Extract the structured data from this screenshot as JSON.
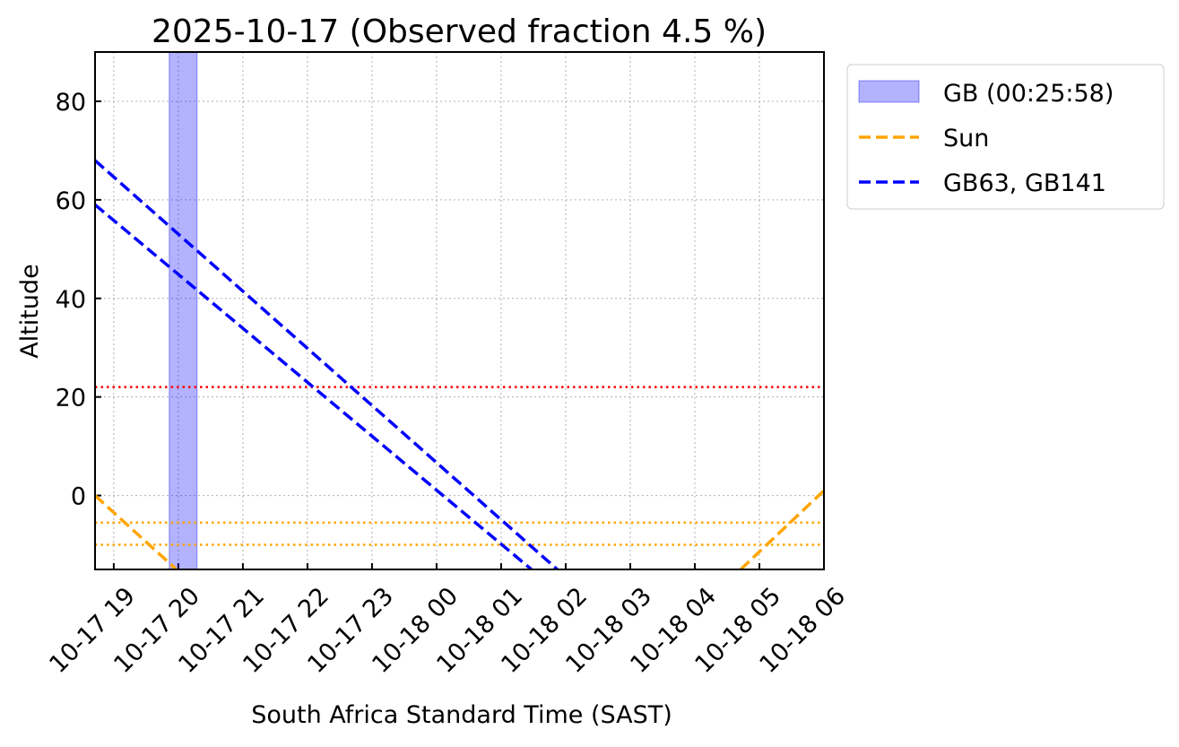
{
  "chart_data": {
    "type": "line",
    "title": "2025-10-17 (Observed fraction 4.5 %)",
    "xlabel": "South Africa Standard Time (SAST)",
    "ylabel": "Altitude",
    "xlim_hours": [
      18.71,
      30.0
    ],
    "ylim": [
      -15,
      90
    ],
    "grid": true,
    "xticks": [
      {
        "h": 19,
        "label": "10-17 19"
      },
      {
        "h": 20,
        "label": "10-17 20"
      },
      {
        "h": 21,
        "label": "10-17 21"
      },
      {
        "h": 22,
        "label": "10-17 22"
      },
      {
        "h": 23,
        "label": "10-17 23"
      },
      {
        "h": 24,
        "label": "10-18 00"
      },
      {
        "h": 25,
        "label": "10-18 01"
      },
      {
        "h": 26,
        "label": "10-18 02"
      },
      {
        "h": 27,
        "label": "10-18 03"
      },
      {
        "h": 28,
        "label": "10-18 04"
      },
      {
        "h": 29,
        "label": "10-18 05"
      },
      {
        "h": 30,
        "label": "10-18 06"
      }
    ],
    "yticks": [
      0,
      20,
      40,
      60,
      80
    ],
    "shaded_window": {
      "label": "GB (00:25:58)",
      "start_h": 19.86,
      "end_h": 20.29,
      "color": "#0000ff"
    },
    "series": [
      {
        "name": "Sun",
        "color": "#ffa500",
        "style": "dashed",
        "segments": [
          [
            [
              18.71,
              0
            ],
            [
              19.97,
              -15
            ]
          ],
          [
            [
              28.71,
              -15
            ],
            [
              30.0,
              1
            ]
          ]
        ]
      },
      {
        "name": "GB63, GB141",
        "color": "#0000ff",
        "style": "dashed",
        "segments": [
          [
            [
              18.71,
              68
            ],
            [
              25.87,
              -15
            ]
          ],
          [
            [
              18.71,
              59
            ],
            [
              25.47,
              -15
            ]
          ]
        ]
      }
    ],
    "hlines": [
      {
        "y": 22,
        "color": "#ff0000"
      },
      {
        "y": -5.5,
        "color": "#ffa500"
      },
      {
        "y": -10,
        "color": "#ffa500"
      }
    ],
    "legend": {
      "position": "outside-top-right",
      "entries": [
        "GB (00:25:58)",
        "Sun",
        "GB63, GB141"
      ]
    }
  }
}
